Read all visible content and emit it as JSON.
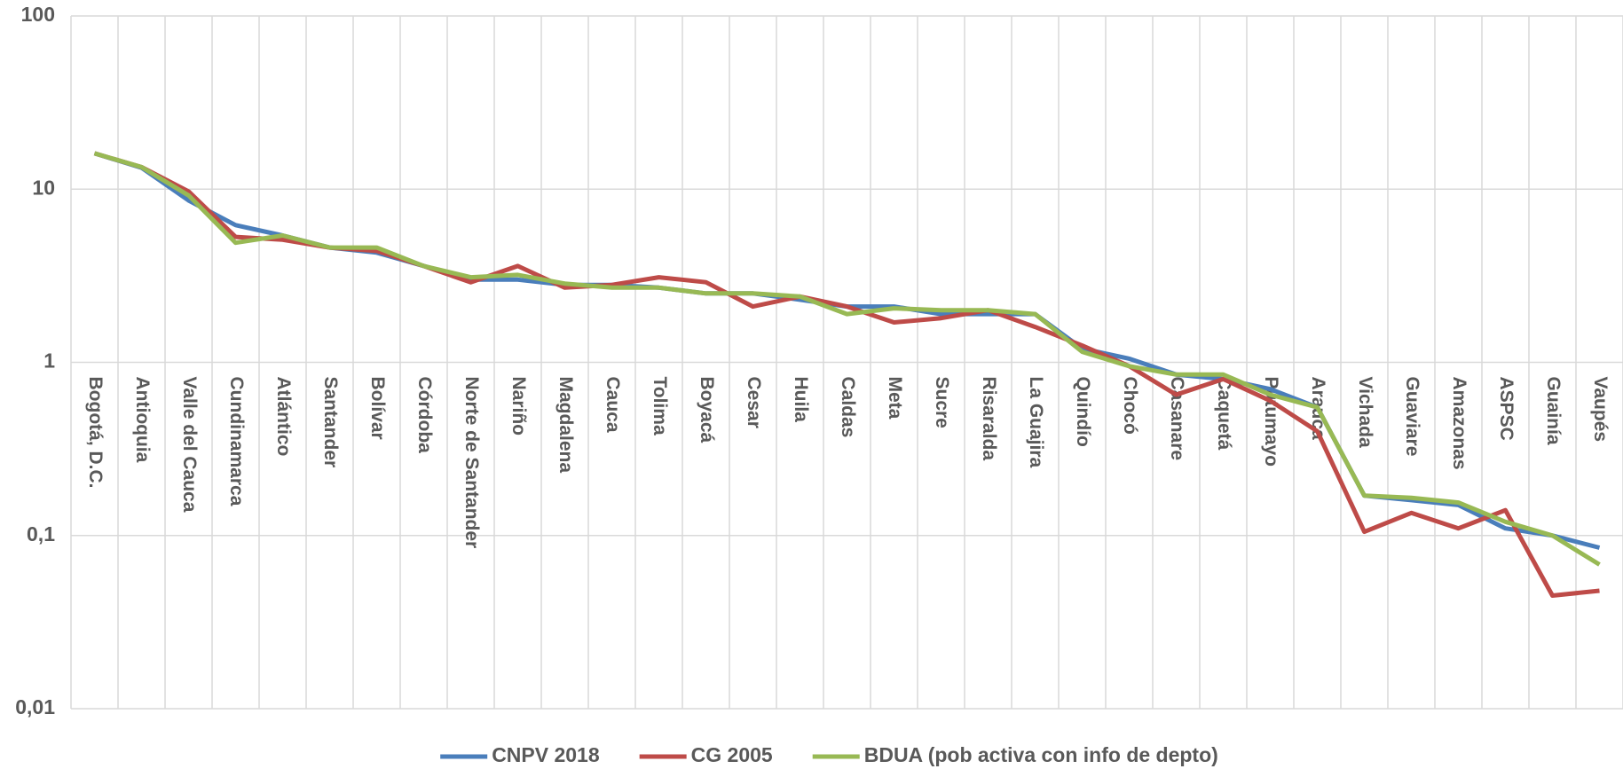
{
  "chart_data": {
    "type": "line",
    "categories": [
      "Bogotá, D.C.",
      "Antioquia",
      "Valle del Cauca",
      "Cundinamarca",
      "Atlántico",
      "Santander",
      "Bolívar",
      "Córdoba",
      "Norte de Santander",
      "Nariño",
      "Magdalena",
      "Cauca",
      "Tolima",
      "Boyacá",
      "Cesar",
      "Huila",
      "Caldas",
      "Meta",
      "Sucre",
      "Risaralda",
      "La Guajira",
      "Quindío",
      "Chocó",
      "Casanare",
      "Caquetá",
      "Putumayo",
      "Arauca",
      "Vichada",
      "Guaviare",
      "Amazonas",
      "ASPSC",
      "Guainía",
      "Vaupés"
    ],
    "series": [
      {
        "name": "CNPV 2018",
        "color": "#4a7ebb",
        "values": [
          16.1,
          13.3,
          8.6,
          6.2,
          5.4,
          4.6,
          4.3,
          3.6,
          3.0,
          3.0,
          2.8,
          2.8,
          2.7,
          2.5,
          2.5,
          2.3,
          2.1,
          2.1,
          1.9,
          1.9,
          1.9,
          1.2,
          1.05,
          0.85,
          0.8,
          0.7,
          0.55,
          0.17,
          0.16,
          0.15,
          0.11,
          0.1,
          0.085
        ]
      },
      {
        "name": "CG 2005",
        "color": "#be4b48",
        "values": [
          16.1,
          13.4,
          9.7,
          5.3,
          5.1,
          4.6,
          4.4,
          3.6,
          2.9,
          3.6,
          2.7,
          2.8,
          3.1,
          2.9,
          2.1,
          2.4,
          2.1,
          1.7,
          1.8,
          2.0,
          1.6,
          1.25,
          0.95,
          0.65,
          0.8,
          0.6,
          0.4,
          0.105,
          0.135,
          0.11,
          0.14,
          0.045,
          0.048
        ]
      },
      {
        "name": "BDUA (pob activa con info de depto)",
        "color": "#98b954",
        "values": [
          16.1,
          13.4,
          9.2,
          4.9,
          5.4,
          4.6,
          4.6,
          3.6,
          3.1,
          3.2,
          2.85,
          2.7,
          2.7,
          2.5,
          2.5,
          2.4,
          1.9,
          2.05,
          2.0,
          2.0,
          1.9,
          1.15,
          0.95,
          0.85,
          0.85,
          0.65,
          0.55,
          0.17,
          0.165,
          0.155,
          0.12,
          0.1,
          0.068
        ]
      }
    ],
    "log_scale": true,
    "ylim": [
      0.01,
      100
    ],
    "yticks": [
      {
        "value": 0.01,
        "label": "0,01"
      },
      {
        "value": 0.1,
        "label": "0,1"
      },
      1,
      10,
      100
    ],
    "grid": true,
    "legend": "bottom"
  }
}
